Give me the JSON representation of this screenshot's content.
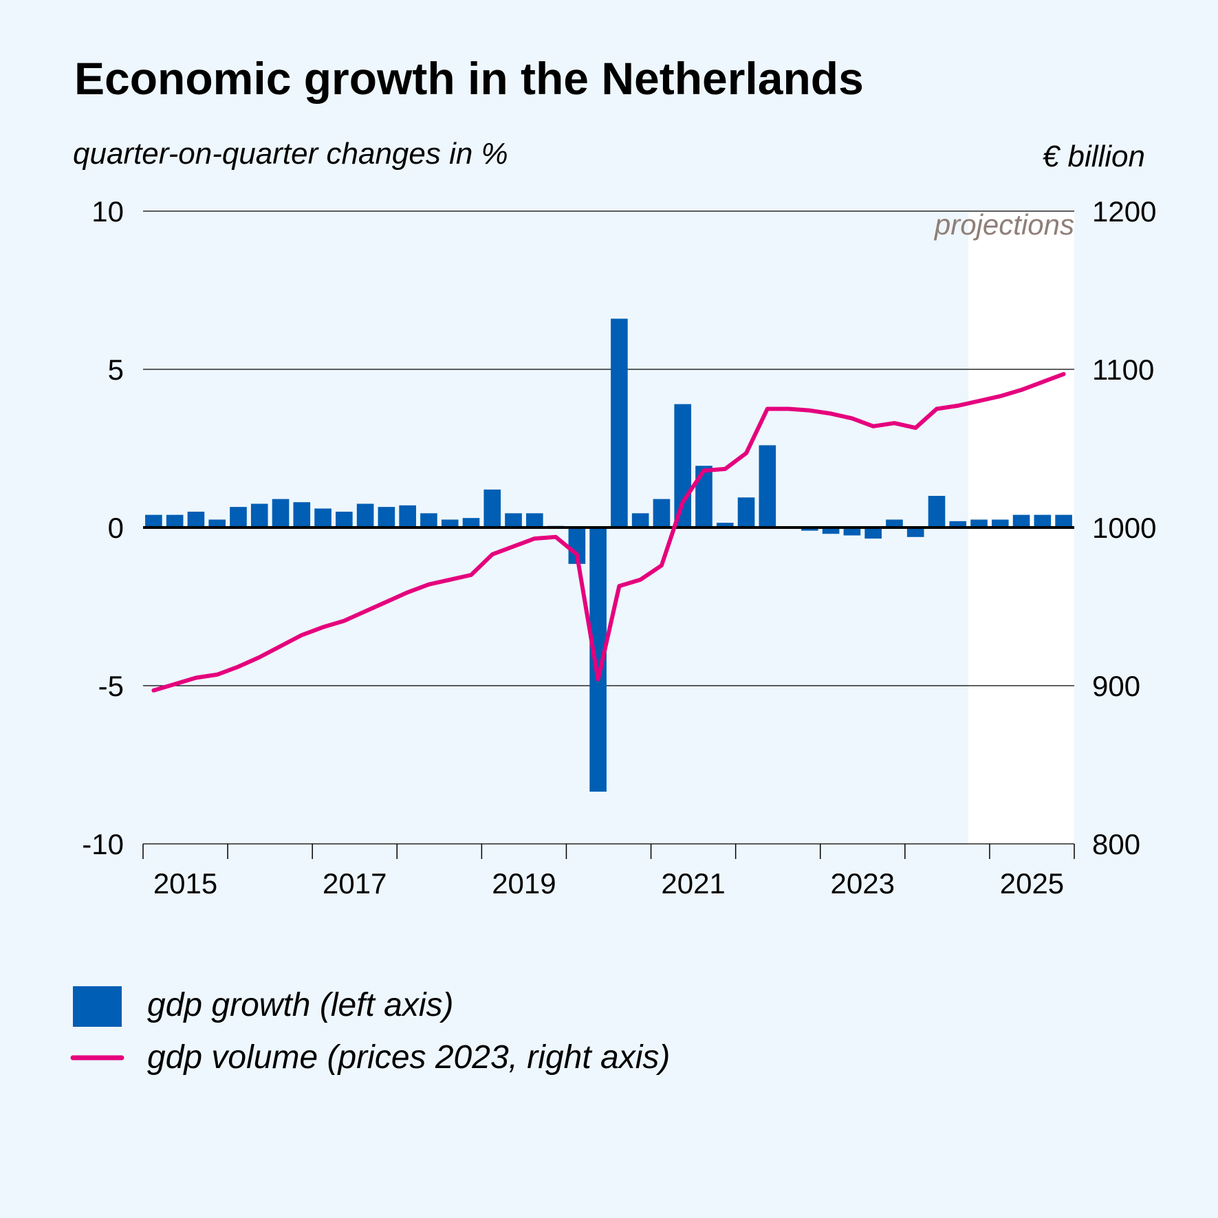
{
  "chart_data": {
    "type": "bar",
    "title": "Economic growth in the Netherlands",
    "left_axis_label": "quarter-on-quarter changes in %",
    "right_axis_label": "€ billion",
    "projection_label": "projections",
    "projection_from_index": 39,
    "left_ylim": [
      -10,
      10
    ],
    "left_ticks": [
      "10",
      "5",
      "0",
      "-5",
      "-10"
    ],
    "left_tick_values": [
      10,
      5,
      0,
      -5,
      -10
    ],
    "right_ylim": [
      800,
      1200
    ],
    "right_ticks": [
      "1200",
      "1100",
      "1000",
      "900",
      "800"
    ],
    "right_tick_values": [
      1200,
      1100,
      1000,
      900,
      800
    ],
    "x_labels": [
      "2015",
      "2017",
      "2019",
      "2021",
      "2023",
      "2025"
    ],
    "x_start_year": 2015,
    "quarters": [
      "2015Q1",
      "2015Q2",
      "2015Q3",
      "2015Q4",
      "2016Q1",
      "2016Q2",
      "2016Q3",
      "2016Q4",
      "2017Q1",
      "2017Q2",
      "2017Q3",
      "2017Q4",
      "2018Q1",
      "2018Q2",
      "2018Q3",
      "2018Q4",
      "2019Q1",
      "2019Q2",
      "2019Q3",
      "2019Q4",
      "2020Q1",
      "2020Q2",
      "2020Q3",
      "2020Q4",
      "2021Q1",
      "2021Q2",
      "2021Q3",
      "2021Q4",
      "2022Q1",
      "2022Q2",
      "2022Q3",
      "2022Q4",
      "2023Q1",
      "2023Q2",
      "2023Q3",
      "2023Q4",
      "2024Q1",
      "2024Q2",
      "2024Q3",
      "2024Q4",
      "2025Q1",
      "2025Q2",
      "2025Q3",
      "2025Q4"
    ],
    "series": [
      {
        "name": "gdp growth (left axis)",
        "type": "bar",
        "axis": "left",
        "color": "#005eb4",
        "values": [
          0.4,
          0.4,
          0.5,
          0.25,
          0.65,
          0.75,
          0.9,
          0.8,
          0.6,
          0.5,
          0.75,
          0.65,
          0.7,
          0.45,
          0.25,
          0.3,
          1.2,
          0.45,
          0.45,
          0.05,
          -1.15,
          -8.35,
          6.6,
          0.45,
          0.9,
          3.9,
          1.95,
          0.15,
          0.95,
          2.6,
          0.0,
          -0.1,
          -0.2,
          -0.25,
          -0.35,
          0.25,
          -0.3,
          1.0,
          0.2,
          0.25,
          0.25,
          0.4,
          0.4,
          0.4
        ]
      },
      {
        "name": "gdp volume (prices 2023, right axis)",
        "type": "line",
        "axis": "right",
        "color": "#e5007d",
        "values": [
          897,
          901,
          905,
          907,
          912,
          918,
          925,
          932,
          937,
          941,
          947,
          953,
          959,
          964,
          967,
          970,
          983,
          988,
          993,
          994,
          983,
          904,
          963,
          967,
          976,
          1016,
          1036,
          1037,
          1047,
          1075,
          1075,
          1074,
          1072,
          1069,
          1064,
          1066,
          1063,
          1075,
          1077,
          1080,
          1083,
          1087,
          1092,
          1097
        ]
      }
    ],
    "grid": true,
    "legend_position": "bottom-left"
  }
}
